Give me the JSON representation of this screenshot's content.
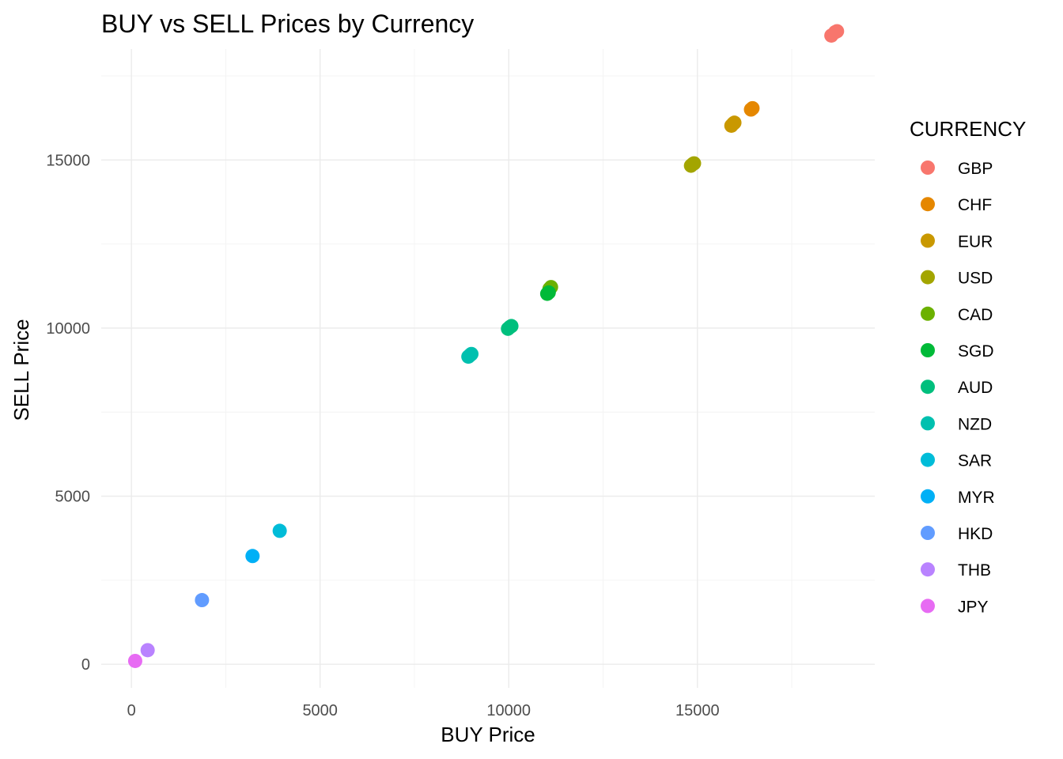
{
  "chart_data": {
    "type": "scatter",
    "title": "BUY vs SELL Prices by Currency",
    "xlabel": "BUY Price",
    "ylabel": "SELL Price",
    "xlim": [
      -800,
      19700
    ],
    "ylim": [
      -700,
      18300
    ],
    "x_ticks": [
      0,
      5000,
      10000,
      15000
    ],
    "y_ticks": [
      0,
      5000,
      10000,
      15000
    ],
    "grid": true,
    "legend": {
      "title": "CURRENCY",
      "placement": "right"
    },
    "series": [
      {
        "name": "GBP",
        "color": "#F8766D",
        "points": [
          [
            18550,
            18700
          ],
          [
            18650,
            18800
          ],
          [
            18700,
            18830
          ]
        ]
      },
      {
        "name": "CHF",
        "color": "#E58700",
        "points": [
          [
            16420,
            16500
          ],
          [
            16460,
            16540
          ]
        ]
      },
      {
        "name": "EUR",
        "color": "#C99800",
        "points": [
          [
            15900,
            16020
          ],
          [
            15950,
            16080
          ],
          [
            15980,
            16110
          ]
        ]
      },
      {
        "name": "USD",
        "color": "#A3A500",
        "points": [
          [
            14830,
            14830
          ],
          [
            14880,
            14880
          ],
          [
            14910,
            14900
          ]
        ]
      },
      {
        "name": "CAD",
        "color": "#6BB100",
        "points": [
          [
            11080,
            11170
          ],
          [
            11120,
            11220
          ]
        ]
      },
      {
        "name": "SGD",
        "color": "#00BA38",
        "points": [
          [
            11020,
            11020
          ],
          [
            11060,
            11060
          ]
        ]
      },
      {
        "name": "AUD",
        "color": "#00BF7D",
        "points": [
          [
            9980,
            9980
          ],
          [
            10030,
            10030
          ],
          [
            10070,
            10060
          ]
        ]
      },
      {
        "name": "NZD",
        "color": "#00C0AF",
        "points": [
          [
            8930,
            9150
          ],
          [
            8980,
            9200
          ],
          [
            9010,
            9230
          ]
        ]
      },
      {
        "name": "SAR",
        "color": "#00BCD8",
        "points": [
          [
            3930,
            3970
          ]
        ]
      },
      {
        "name": "MYR",
        "color": "#00B0F6",
        "points": [
          [
            3210,
            3220
          ]
        ]
      },
      {
        "name": "HKD",
        "color": "#619CFF",
        "points": [
          [
            1870,
            1910
          ]
        ]
      },
      {
        "name": "THB",
        "color": "#B983FF",
        "points": [
          [
            430,
            420
          ]
        ]
      },
      {
        "name": "JPY",
        "color": "#E76BF3",
        "points": [
          [
            100,
            100
          ]
        ]
      }
    ]
  }
}
